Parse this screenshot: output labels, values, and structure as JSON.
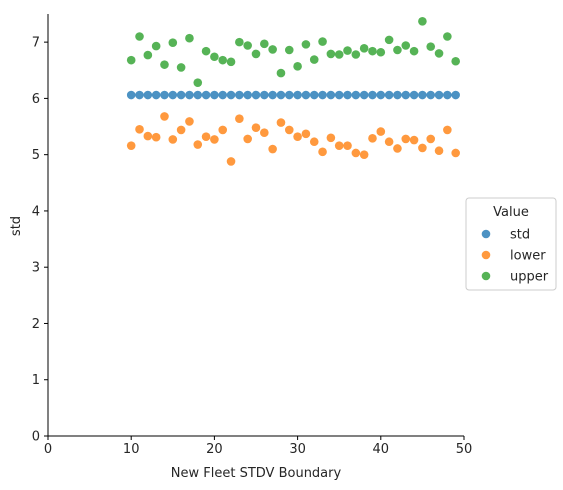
{
  "chart_data": {
    "type": "scatter",
    "xlabel": "New Fleet STDV Boundary",
    "ylabel": "std",
    "xlim": [
      0,
      50
    ],
    "ylim": [
      0,
      7.5
    ],
    "xticks": [
      0,
      10,
      20,
      30,
      40,
      50
    ],
    "yticks": [
      0,
      1,
      2,
      3,
      4,
      5,
      6,
      7
    ],
    "grid": false,
    "legend": {
      "title": "Value",
      "placement": "right"
    },
    "x": [
      10,
      11,
      12,
      13,
      14,
      15,
      16,
      17,
      18,
      19,
      20,
      21,
      22,
      23,
      24,
      25,
      26,
      27,
      28,
      29,
      30,
      31,
      32,
      33,
      34,
      35,
      36,
      37,
      38,
      39,
      40,
      41,
      42,
      43,
      44,
      45,
      46,
      47,
      48,
      49
    ],
    "series": [
      {
        "name": "std",
        "color": "#1f77b4",
        "values": [
          6.06,
          6.06,
          6.06,
          6.06,
          6.06,
          6.06,
          6.06,
          6.06,
          6.06,
          6.06,
          6.06,
          6.06,
          6.06,
          6.06,
          6.06,
          6.06,
          6.06,
          6.06,
          6.06,
          6.06,
          6.06,
          6.06,
          6.06,
          6.06,
          6.06,
          6.06,
          6.06,
          6.06,
          6.06,
          6.06,
          6.06,
          6.06,
          6.06,
          6.06,
          6.06,
          6.06,
          6.06,
          6.06,
          6.06,
          6.06
        ]
      },
      {
        "name": "lower",
        "color": "#ff7f0e",
        "values": [
          5.16,
          5.45,
          5.33,
          5.31,
          5.68,
          5.27,
          5.44,
          5.59,
          5.18,
          5.32,
          5.27,
          5.44,
          4.88,
          5.64,
          5.28,
          5.48,
          5.39,
          5.1,
          5.57,
          5.44,
          5.32,
          5.37,
          5.23,
          5.05,
          5.3,
          5.16,
          5.16,
          5.03,
          5.0,
          5.29,
          5.41,
          5.23,
          5.11,
          5.28,
          5.26,
          5.12,
          5.28,
          5.07,
          5.44,
          5.03
        ]
      },
      {
        "name": "upper",
        "color": "#2ca02c",
        "values": [
          6.68,
          7.1,
          6.77,
          6.93,
          6.6,
          6.99,
          6.55,
          7.07,
          6.28,
          6.84,
          6.74,
          6.68,
          6.65,
          7.0,
          6.94,
          6.79,
          6.97,
          6.87,
          6.45,
          6.86,
          6.57,
          6.96,
          6.69,
          7.01,
          6.79,
          6.78,
          6.85,
          6.78,
          6.89,
          6.84,
          6.82,
          7.04,
          6.86,
          6.94,
          6.84,
          7.37,
          6.92,
          6.8,
          7.1,
          6.66
        ]
      }
    ]
  }
}
